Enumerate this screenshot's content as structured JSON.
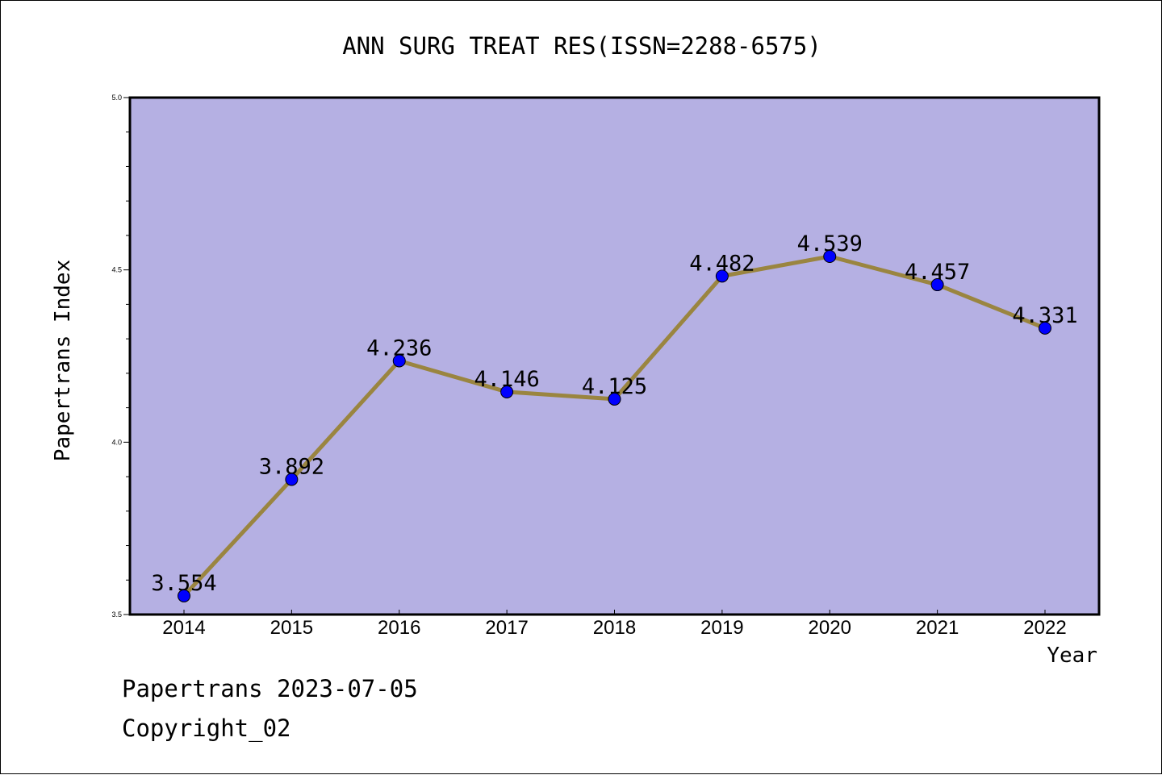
{
  "chart_data": {
    "type": "line",
    "title": "ANN SURG TREAT RES(ISSN=2288-6575)",
    "xlabel": "Year",
    "ylabel": "Papertrans Index",
    "categories": [
      "2014",
      "2015",
      "2016",
      "2017",
      "2018",
      "2019",
      "2020",
      "2021",
      "2022"
    ],
    "values": [
      3.554,
      3.892,
      4.236,
      4.146,
      4.125,
      4.482,
      4.539,
      4.457,
      4.331
    ],
    "data_labels": [
      "3.554",
      "3.892",
      "4.236",
      "4.146",
      "4.125",
      "4.482",
      "4.539",
      "4.457",
      "4.331"
    ],
    "ylim": [
      3.5,
      5.0
    ],
    "y_ticks": [
      3.5,
      4.0,
      4.5,
      5.0
    ],
    "y_tick_labels": [
      "3.5",
      "4.0",
      "4.5",
      "5.0"
    ],
    "grid": false,
    "legend": "none",
    "colors": {
      "plot_background": "#b5b0e3",
      "line": "#9a8540",
      "marker": "#0000ff"
    }
  },
  "footer": {
    "line1": "Papertrans 2023-07-05",
    "line2": "Copyright_02"
  }
}
